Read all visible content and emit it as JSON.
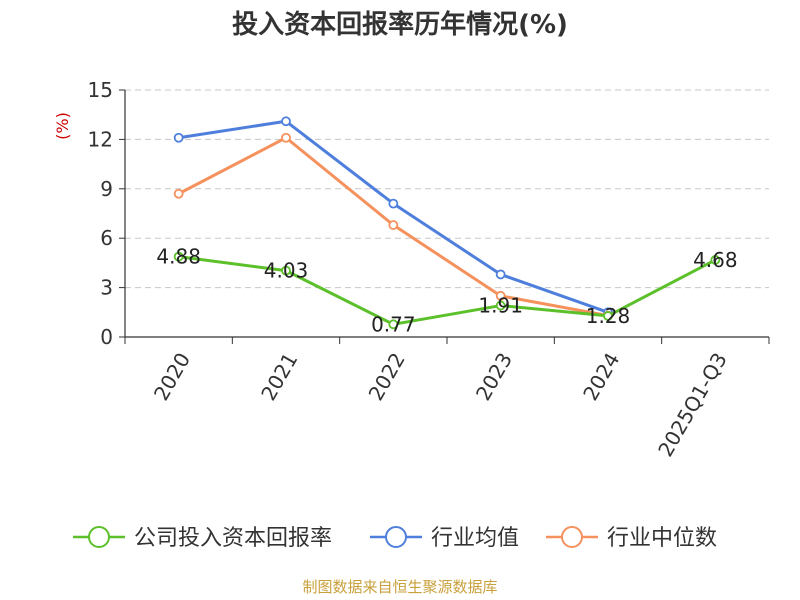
{
  "source_note": "制图数据来自恒生聚源数据库",
  "chart_data": {
    "type": "line",
    "title": "投入资本回报率历年情况(%)",
    "ylabel": "(%)",
    "xlabel": "",
    "ylim": [
      0,
      15
    ],
    "yticks": [
      0,
      3,
      6,
      9,
      12,
      15
    ],
    "categories": [
      "2020",
      "2021",
      "2022",
      "2023",
      "2024",
      "2025Q1-Q3"
    ],
    "grid": true,
    "legend_position": "bottom",
    "series": [
      {
        "name": "公司投入资本回报率",
        "color": "#5cc02a",
        "values": [
          4.88,
          4.03,
          0.77,
          1.91,
          1.28,
          4.68
        ],
        "labels": [
          "4.88",
          "4.03",
          "0.77",
          "1.91",
          "1.28",
          "4.68"
        ],
        "show_labels": true
      },
      {
        "name": "行业均值",
        "color": "#4f7fdc",
        "values": [
          12.1,
          13.1,
          8.1,
          3.8,
          1.5,
          null
        ],
        "show_labels": false
      },
      {
        "name": "行业中位数",
        "color": "#f5915c",
        "values": [
          8.7,
          12.1,
          6.8,
          2.5,
          1.3,
          null
        ],
        "show_labels": false
      }
    ]
  },
  "colors": {
    "title": "#333333",
    "axis": "#333333",
    "grid": "#c8c8c8",
    "ylabel": "#cc0000",
    "source": "#c9a13c"
  }
}
